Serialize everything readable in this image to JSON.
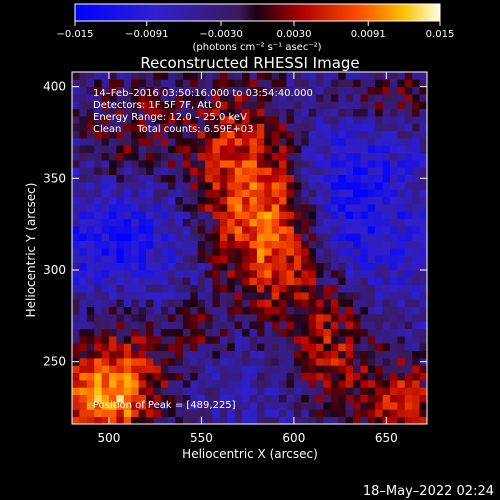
{
  "chart_data": {
    "type": "heatmap",
    "title": "Reconstructed RHESSI Image",
    "xlabel": "Heliocentric X (arcsec)",
    "ylabel": "Heliocentric Y (arcsec)",
    "xlim": [
      480,
      672
    ],
    "ylim": [
      216,
      408
    ],
    "x_ticks": [
      "500",
      "550",
      "600",
      "650"
    ],
    "y_ticks": [
      "250",
      "300",
      "350",
      "400"
    ],
    "x_tick_values": [
      500,
      550,
      600,
      650
    ],
    "y_tick_values": [
      250,
      300,
      350,
      400
    ],
    "colorbar": {
      "min": -0.015,
      "max": 0.015,
      "tick_labels": [
        "−0.015",
        "−0.0091",
        "−0.0030",
        "0.0030",
        "0.0091",
        "0.015"
      ],
      "tick_values": [
        -0.015,
        -0.0091,
        -0.003,
        0.003,
        0.0091,
        0.015
      ],
      "unit_label": "(photons cm⁻² s⁻¹ asec⁻²)"
    },
    "info_lines": [
      "14–Feb–2016 03:50:16.000 to 03:54:40.000",
      "Detectors: 1F 5F 7F, Att 0",
      "Energy Range: 12.0 – 25.0 keV",
      "Clean     Total counts: 6.59E+03"
    ],
    "peak_label": "Position of Peak = [489,225]",
    "peak_position": [
      489,
      225
    ]
  },
  "footer_timestamp": "18–May–2022 02:24"
}
